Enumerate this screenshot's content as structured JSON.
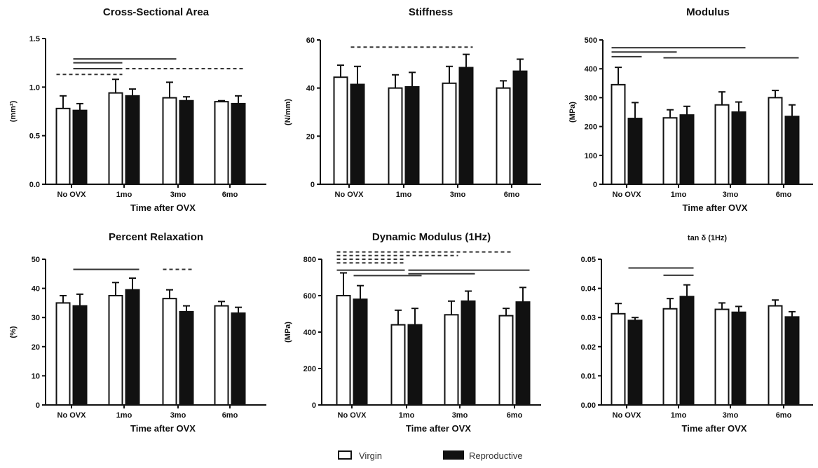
{
  "legend": {
    "virgin": "Virgin",
    "reproductive": "Reproductive"
  },
  "chart_data": [
    {
      "type": "bar",
      "title": "Cross-Sectional  Area",
      "ylabel": "(mm²)",
      "xlabel": "Time after OVX",
      "categories": [
        "No OVX",
        "1mo",
        "3mo",
        "6mo"
      ],
      "ylim": [
        0,
        1.5
      ],
      "yticks": [
        "0.0",
        "0.5",
        "1.0",
        "1.5"
      ],
      "ytick_values": [
        0,
        0.5,
        1.0,
        1.5
      ],
      "series": [
        {
          "name": "Virgin",
          "values": [
            0.78,
            0.94,
            0.89,
            0.85
          ],
          "errors": [
            0.13,
            0.14,
            0.16,
            0.01
          ]
        },
        {
          "name": "Reproductive",
          "values": [
            0.76,
            0.91,
            0.86,
            0.83
          ],
          "errors": [
            0.07,
            0.07,
            0.04,
            0.08
          ]
        }
      ],
      "significance": [
        {
          "y": 1.13,
          "from": [
            0,
            0
          ],
          "to": [
            1,
            0
          ],
          "dashed": true
        },
        {
          "y": 1.29,
          "from": [
            0,
            1
          ],
          "to": [
            2,
            0
          ],
          "dashed": false
        },
        {
          "y": 1.25,
          "from": [
            0,
            1
          ],
          "to": [
            1,
            0
          ],
          "dashed": false
        },
        {
          "y": 1.19,
          "from": [
            0,
            1
          ],
          "to": [
            1,
            0
          ],
          "dashed": false
        },
        {
          "y": 1.19,
          "from": [
            1,
            1
          ],
          "to": [
            3,
            1
          ],
          "dashed": true
        }
      ]
    },
    {
      "type": "bar",
      "title": "Stiffness",
      "ylabel": "(N/mm)",
      "xlabel": "",
      "categories": [
        "No OVX",
        "1mo",
        "3mo",
        "6mo"
      ],
      "ylim": [
        0,
        60
      ],
      "yticks": [
        "0",
        "20",
        "40",
        "60"
      ],
      "ytick_values": [
        0,
        20,
        40,
        60
      ],
      "series": [
        {
          "name": "Virgin",
          "values": [
            44.5,
            40,
            42,
            40
          ],
          "errors": [
            5,
            5.5,
            7,
            3
          ]
        },
        {
          "name": "Reproductive",
          "values": [
            41.5,
            40.5,
            48.5,
            47
          ],
          "errors": [
            7.5,
            6,
            5.5,
            5
          ]
        }
      ],
      "significance": [
        {
          "y": 57,
          "from": [
            0,
            1
          ],
          "to": [
            2,
            1
          ],
          "dashed": true
        }
      ]
    },
    {
      "type": "bar",
      "title": "Modulus",
      "ylabel": "(MPa)",
      "xlabel": "Time after OVX",
      "categories": [
        "No OVX",
        "1mo",
        "3mo",
        "6mo"
      ],
      "ylim": [
        0,
        500
      ],
      "yticks": [
        "0",
        "100",
        "200",
        "300",
        "400",
        "500"
      ],
      "ytick_values": [
        0,
        100,
        200,
        300,
        400,
        500
      ],
      "series": [
        {
          "name": "Virgin",
          "values": [
            345,
            230,
            275,
            300
          ],
          "errors": [
            60,
            28,
            45,
            25
          ]
        },
        {
          "name": "Reproductive",
          "values": [
            228,
            240,
            250,
            235
          ],
          "errors": [
            55,
            30,
            35,
            40
          ]
        }
      ],
      "significance": [
        {
          "y": 473,
          "from": [
            0,
            0
          ],
          "to": [
            2,
            1
          ],
          "dashed": false
        },
        {
          "y": 458,
          "from": [
            0,
            0
          ],
          "to": [
            1,
            0
          ],
          "dashed": false
        },
        {
          "y": 442,
          "from": [
            0,
            0
          ],
          "to": [
            0,
            1
          ],
          "dashed": false
        },
        {
          "y": 438,
          "from": [
            1,
            0
          ],
          "to": [
            3,
            0
          ],
          "dashed": false
        },
        {
          "y": 438,
          "from": [
            3,
            0
          ],
          "to": [
            3,
            1
          ],
          "dashed": false
        }
      ]
    },
    {
      "type": "bar",
      "title": "Percent Relaxation",
      "ylabel": "(%)",
      "xlabel": "Time after OVX",
      "categories": [
        "No OVX",
        "1mo",
        "3mo",
        "6mo"
      ],
      "ylim": [
        0,
        50
      ],
      "yticks": [
        "0",
        "10",
        "20",
        "30",
        "40",
        "50"
      ],
      "ytick_values": [
        0,
        10,
        20,
        30,
        40,
        50
      ],
      "series": [
        {
          "name": "Virgin",
          "values": [
            35,
            37.5,
            36.5,
            34
          ],
          "errors": [
            2.5,
            4.5,
            3,
            1.5
          ]
        },
        {
          "name": "Reproductive",
          "values": [
            34,
            39.5,
            32,
            31.5
          ],
          "errors": [
            4,
            4,
            2,
            2
          ]
        }
      ],
      "significance": [
        {
          "y": 46.5,
          "from": [
            0,
            1
          ],
          "to": [
            1,
            1
          ],
          "dashed": false
        },
        {
          "y": 46.5,
          "from": [
            2,
            0
          ],
          "to": [
            2,
            1
          ],
          "dashed": true
        }
      ]
    },
    {
      "type": "bar",
      "title": "Dynamic Modulus (1Hz)",
      "ylabel": "(MPa)",
      "xlabel": "Time after OVX",
      "categories": [
        "No OVX",
        "1mo",
        "3mo",
        "6mo"
      ],
      "ylim": [
        0,
        800
      ],
      "yticks": [
        "0",
        "200",
        "400",
        "600",
        "800"
      ],
      "ytick_values": [
        0,
        200,
        400,
        600,
        800
      ],
      "series": [
        {
          "name": "Virgin",
          "values": [
            600,
            440,
            495,
            490
          ],
          "errors": [
            125,
            80,
            75,
            40
          ]
        },
        {
          "name": "Reproductive",
          "values": [
            580,
            440,
            570,
            565
          ],
          "errors": [
            75,
            90,
            55,
            80
          ]
        }
      ],
      "significance": [
        {
          "y": 840,
          "from": [
            0,
            0
          ],
          "to": [
            3,
            0
          ],
          "dashed": true
        },
        {
          "y": 820,
          "from": [
            0,
            0
          ],
          "to": [
            2,
            0
          ],
          "dashed": true
        },
        {
          "y": 800,
          "from": [
            0,
            0
          ],
          "to": [
            1,
            0
          ],
          "dashed": true
        },
        {
          "y": 780,
          "from": [
            0,
            0
          ],
          "to": [
            1,
            0
          ],
          "dashed": true
        },
        {
          "y": 740,
          "from": [
            0,
            0
          ],
          "to": [
            1,
            0
          ],
          "dashed": false
        },
        {
          "y": 710,
          "from": [
            0,
            1
          ],
          "to": [
            1,
            1
          ],
          "dashed": false
        },
        {
          "y": 720,
          "from": [
            1,
            1
          ],
          "to": [
            2,
            1
          ],
          "dashed": false
        },
        {
          "y": 740,
          "from": [
            1,
            1
          ],
          "to": [
            3,
            1
          ],
          "dashed": false
        }
      ]
    },
    {
      "type": "bar",
      "title": "tan δ (1Hz)",
      "ylabel": "",
      "xlabel": "Time after OVX",
      "categories": [
        "No OVX",
        "1mo",
        "3mo",
        "6mo"
      ],
      "ylim": [
        0,
        0.05
      ],
      "yticks": [
        "0.00",
        "0.01",
        "0.02",
        "0.03",
        "0.04",
        "0.05"
      ],
      "ytick_values": [
        0,
        0.01,
        0.02,
        0.03,
        0.04,
        0.05
      ],
      "series": [
        {
          "name": "Virgin",
          "values": [
            0.0313,
            0.033,
            0.0328,
            0.034
          ],
          "errors": [
            0.0035,
            0.0035,
            0.0022,
            0.002
          ]
        },
        {
          "name": "Reproductive",
          "values": [
            0.029,
            0.0372,
            0.0318,
            0.0302
          ],
          "errors": [
            0.001,
            0.004,
            0.002,
            0.0018
          ]
        }
      ],
      "significance": [
        {
          "y": 0.047,
          "from": [
            0,
            1
          ],
          "to": [
            1,
            1
          ],
          "dashed": false
        },
        {
          "y": 0.0445,
          "from": [
            1,
            0
          ],
          "to": [
            1,
            1
          ],
          "dashed": false
        }
      ]
    }
  ]
}
